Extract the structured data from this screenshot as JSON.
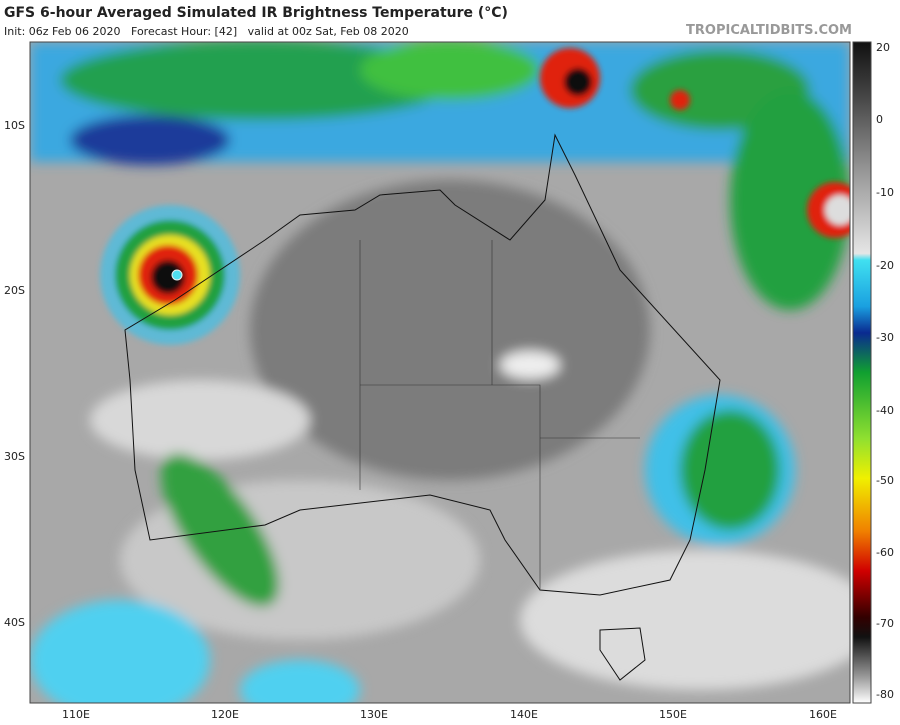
{
  "header": {
    "title": "GFS 6-hour Averaged Simulated IR Brightness Temperature (°C)",
    "subtitle": "Init: 06z Feb 06 2020   Forecast Hour: [42]   valid at 00z Sat, Feb 08 2020",
    "brand": "TROPICALTIDBITS.COM"
  },
  "map": {
    "latitude_labels": [
      "10S",
      "20S",
      "30S",
      "40S"
    ],
    "longitude_labels": [
      "110E",
      "120E",
      "130E",
      "140E",
      "150E",
      "160E"
    ]
  },
  "colorbar": {
    "labels": [
      "20",
      "0",
      "-10",
      "-20",
      "-30",
      "-40",
      "-50",
      "-60",
      "-70",
      "-80"
    ]
  }
}
